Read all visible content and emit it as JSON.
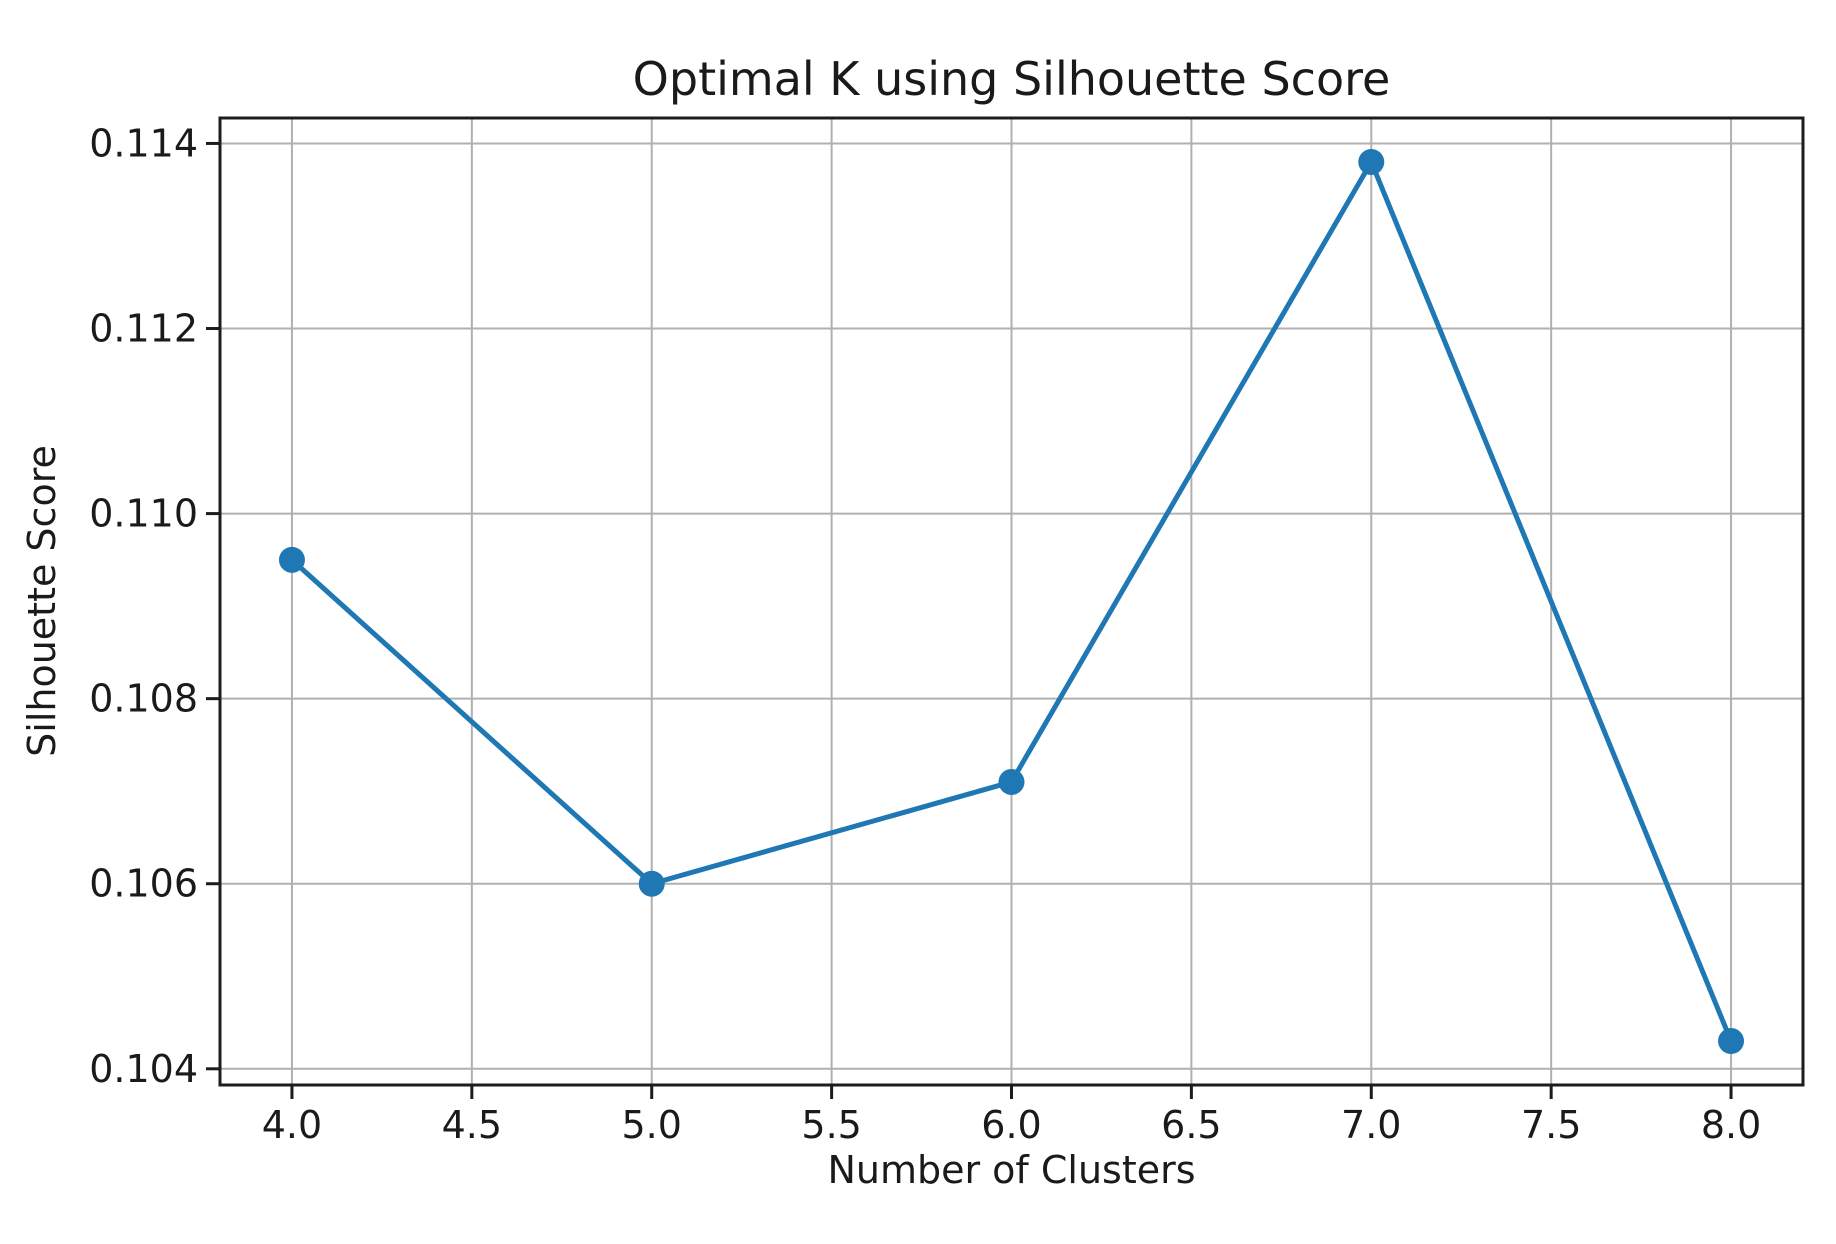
{
  "chart_data": {
    "type": "line",
    "title": "Optimal K using Silhouette Score",
    "xlabel": "Number of Clusters",
    "ylabel": "Silhouette Score",
    "x": [
      4,
      5,
      6,
      7,
      8
    ],
    "y": [
      0.1095,
      0.106,
      0.1071,
      0.1138,
      0.1043
    ],
    "xlim": [
      3.8,
      8.2
    ],
    "ylim": [
      0.103825,
      0.114275
    ],
    "x_ticks": [
      4.0,
      4.5,
      5.0,
      5.5,
      6.0,
      6.5,
      7.0,
      7.5,
      8.0
    ],
    "x_tick_labels": [
      "4.0",
      "4.5",
      "5.0",
      "5.5",
      "6.0",
      "6.5",
      "7.0",
      "7.5",
      "8.0"
    ],
    "y_ticks": [
      0.104,
      0.106,
      0.108,
      0.11,
      0.112,
      0.114
    ],
    "y_tick_labels": [
      "0.104",
      "0.106",
      "0.108",
      "0.110",
      "0.112",
      "0.114"
    ],
    "grid": true,
    "legend": "none",
    "line_color": "#1f77b4",
    "marker_color": "#1f77b4",
    "grid_color": "#b0b0b0",
    "spine_color": "#1c1c1c",
    "marker": "o"
  }
}
